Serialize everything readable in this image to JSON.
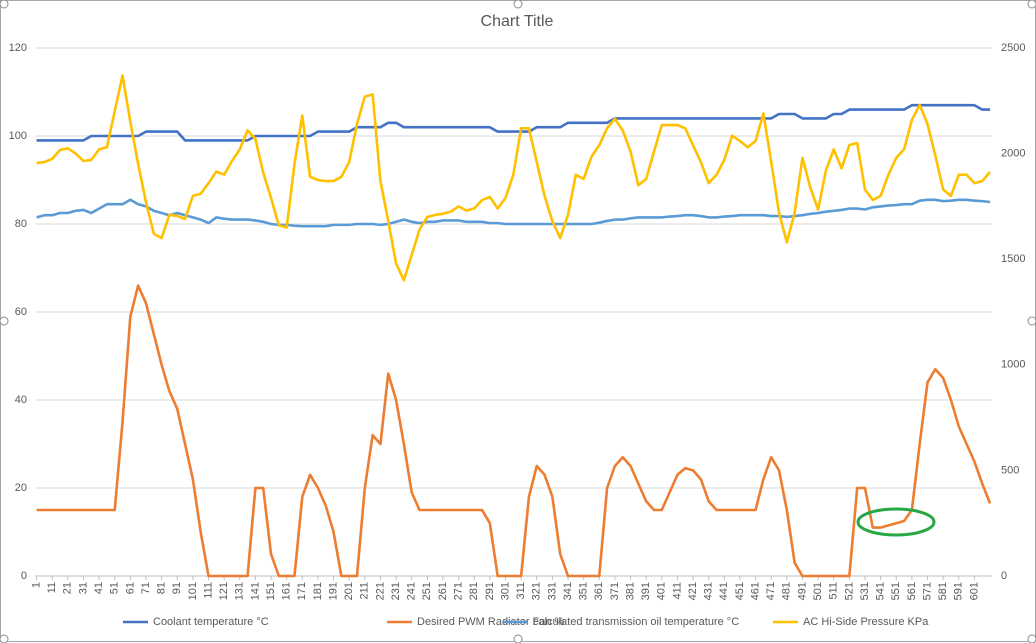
{
  "chart_data": {
    "type": "line",
    "title": "Chart Title",
    "x": [
      1,
      6,
      11,
      16,
      21,
      26,
      31,
      36,
      41,
      46,
      51,
      56,
      61,
      66,
      71,
      76,
      81,
      86,
      91,
      96,
      101,
      106,
      111,
      116,
      121,
      126,
      131,
      136,
      141,
      146,
      151,
      156,
      161,
      166,
      171,
      176,
      181,
      186,
      191,
      196,
      201,
      206,
      211,
      216,
      221,
      226,
      231,
      236,
      241,
      246,
      251,
      256,
      261,
      266,
      271,
      276,
      281,
      286,
      291,
      296,
      301,
      306,
      311,
      316,
      321,
      326,
      331,
      336,
      341,
      346,
      351,
      356,
      361,
      366,
      371,
      376,
      381,
      386,
      391,
      396,
      401,
      406,
      411,
      416,
      421,
      426,
      431,
      436,
      441,
      446,
      451,
      456,
      461,
      466,
      471,
      476,
      481,
      486,
      491,
      496,
      501,
      506,
      511,
      516,
      521,
      526,
      531,
      536,
      541,
      546,
      551,
      556,
      561,
      566,
      571,
      576,
      581,
      586,
      591,
      596,
      601,
      606,
      611
    ],
    "xlim": [
      0,
      612
    ],
    "xticks": [
      1,
      11,
      21,
      31,
      41,
      51,
      61,
      71,
      81,
      91,
      101,
      111,
      121,
      131,
      141,
      151,
      161,
      171,
      181,
      191,
      201,
      211,
      221,
      231,
      241,
      251,
      261,
      271,
      281,
      291,
      301,
      311,
      321,
      331,
      341,
      351,
      361,
      371,
      381,
      391,
      401,
      411,
      421,
      431,
      441,
      451,
      461,
      471,
      481,
      491,
      501,
      511,
      521,
      531,
      541,
      551,
      561,
      571,
      581,
      591,
      601
    ],
    "ylim": [
      0,
      120
    ],
    "yticks": [
      0,
      20,
      40,
      60,
      80,
      100,
      120
    ],
    "y2lim": [
      0,
      2500
    ],
    "y2ticks": [
      0,
      500,
      1000,
      1500,
      2000,
      2500
    ],
    "grid": true,
    "legend": "bottom",
    "series": [
      {
        "name": "Coolant temperature °C",
        "color": "#4472c4",
        "values": [
          99,
          99,
          99,
          99,
          99,
          99,
          99,
          100,
          100,
          100,
          100,
          100,
          100,
          100,
          101,
          101,
          101,
          101,
          101,
          99,
          99,
          99,
          99,
          99,
          99,
          99,
          99,
          99,
          100,
          100,
          100,
          100,
          100,
          100,
          100,
          100,
          101,
          101,
          101,
          101,
          101,
          102,
          102,
          102,
          102,
          103,
          103,
          102,
          102,
          102,
          102,
          102,
          102,
          102,
          102,
          102,
          102,
          102,
          102,
          101,
          101,
          101,
          101,
          101,
          102,
          102,
          102,
          102,
          103,
          103,
          103,
          103,
          103,
          103,
          104,
          104,
          104,
          104,
          104,
          104,
          104,
          104,
          104,
          104,
          104,
          104,
          104,
          104,
          104,
          104,
          104,
          104,
          104,
          104,
          104,
          105,
          105,
          105,
          104,
          104,
          104,
          104,
          105,
          105,
          106,
          106,
          106,
          106,
          106,
          106,
          106,
          106,
          107,
          107,
          107,
          107,
          107,
          107,
          107,
          107,
          107,
          106,
          106
        ]
      },
      {
        "name": "Desired PWM Radiator Fan %",
        "color": "#ed7d31",
        "values": [
          15,
          15,
          15,
          15,
          15,
          15,
          15,
          15,
          15,
          15,
          15,
          35,
          59,
          66,
          62,
          55,
          48,
          42,
          38,
          30,
          22,
          10,
          0,
          0,
          0,
          0,
          0,
          0,
          20,
          20,
          5,
          0,
          0,
          0,
          18,
          23,
          20,
          16,
          10,
          0,
          0,
          0,
          20,
          32,
          30,
          46,
          40,
          30,
          19,
          15,
          15,
          15,
          15,
          15,
          15,
          15,
          15,
          15,
          12,
          0,
          0,
          0,
          0,
          18,
          25,
          23,
          18,
          5,
          0,
          0,
          0,
          0,
          0,
          20,
          25,
          27,
          25,
          21,
          17,
          15,
          15,
          19,
          23,
          24.5,
          24,
          22,
          17,
          15,
          15,
          15,
          15,
          15,
          15,
          22,
          27,
          24,
          15,
          3,
          0,
          0,
          0,
          0,
          0,
          0,
          0,
          20,
          20,
          11,
          11,
          11.5,
          12,
          12.5,
          15,
          30,
          44,
          47,
          45,
          40,
          34,
          30,
          26,
          21,
          16.5
        ]
      },
      {
        "name": "calculated transmission oil temperature °C",
        "color": "#5b9bd5",
        "values": [
          81.5,
          82,
          82,
          82.5,
          82.5,
          83,
          83.2,
          82.5,
          83.5,
          84.5,
          84.5,
          84.5,
          85.5,
          84.5,
          84,
          83,
          82.5,
          82,
          82.5,
          82,
          81.5,
          81,
          80.2,
          81.5,
          81.2,
          81,
          81,
          81,
          80.8,
          80.5,
          80,
          79.8,
          79.8,
          79.6,
          79.5,
          79.5,
          79.5,
          79.5,
          79.8,
          79.8,
          79.8,
          80,
          80,
          80,
          79.8,
          80,
          80.5,
          81,
          80.5,
          80.2,
          80.5,
          80.5,
          80.8,
          80.8,
          80.8,
          80.5,
          80.5,
          80.5,
          80.2,
          80.2,
          80,
          80,
          80,
          80,
          80,
          80,
          80,
          80,
          80,
          80,
          80,
          80,
          80.3,
          80.7,
          81,
          81,
          81.3,
          81.5,
          81.5,
          81.5,
          81.5,
          81.7,
          81.8,
          82,
          82,
          81.8,
          81.5,
          81.5,
          81.7,
          81.8,
          82,
          82,
          82,
          82,
          81.8,
          81.8,
          81.6,
          81.8,
          82,
          82.3,
          82.5,
          82.8,
          83,
          83.2,
          83.5,
          83.5,
          83.3,
          83.8,
          84,
          84.2,
          84.3,
          84.5,
          84.5,
          85.3,
          85.5,
          85.5,
          85.2,
          85.3,
          85.5,
          85.5,
          85.3,
          85.2,
          85
        ]
      },
      {
        "name": "AC Hi-Side Pressure KPa",
        "color": "#ffc000",
        "axis": "y2",
        "values": [
          1955,
          1960,
          1975,
          2017,
          2025,
          2000,
          1965,
          1970,
          2020,
          2030,
          2200,
          2370,
          2150,
          1950,
          1770,
          1620,
          1600,
          1710,
          1705,
          1690,
          1800,
          1810,
          1860,
          1915,
          1900,
          1965,
          2020,
          2110,
          2070,
          1910,
          1790,
          1660,
          1650,
          1950,
          2180,
          1890,
          1875,
          1870,
          1870,
          1890,
          1960,
          2140,
          2270,
          2280,
          1870,
          1680,
          1480,
          1400,
          1520,
          1640,
          1700,
          1710,
          1715,
          1725,
          1750,
          1730,
          1740,
          1780,
          1795,
          1740,
          1790,
          1900,
          2120,
          2120,
          1960,
          1800,
          1680,
          1600,
          1710,
          1900,
          1880,
          1985,
          2040,
          2120,
          2165,
          2110,
          2010,
          1850,
          1880,
          2010,
          2135,
          2135,
          2135,
          2120,
          2040,
          1960,
          1860,
          1900,
          1970,
          2085,
          2060,
          2030,
          2060,
          2190,
          1960,
          1720,
          1580,
          1720,
          1980,
          1840,
          1735,
          1920,
          2020,
          1930,
          2040,
          2050,
          1830,
          1780,
          1800,
          1900,
          1980,
          2020,
          2160,
          2230,
          2140,
          1990,
          1830,
          1800,
          1900,
          1900,
          1860,
          1870,
          1913
        ]
      }
    ]
  }
}
